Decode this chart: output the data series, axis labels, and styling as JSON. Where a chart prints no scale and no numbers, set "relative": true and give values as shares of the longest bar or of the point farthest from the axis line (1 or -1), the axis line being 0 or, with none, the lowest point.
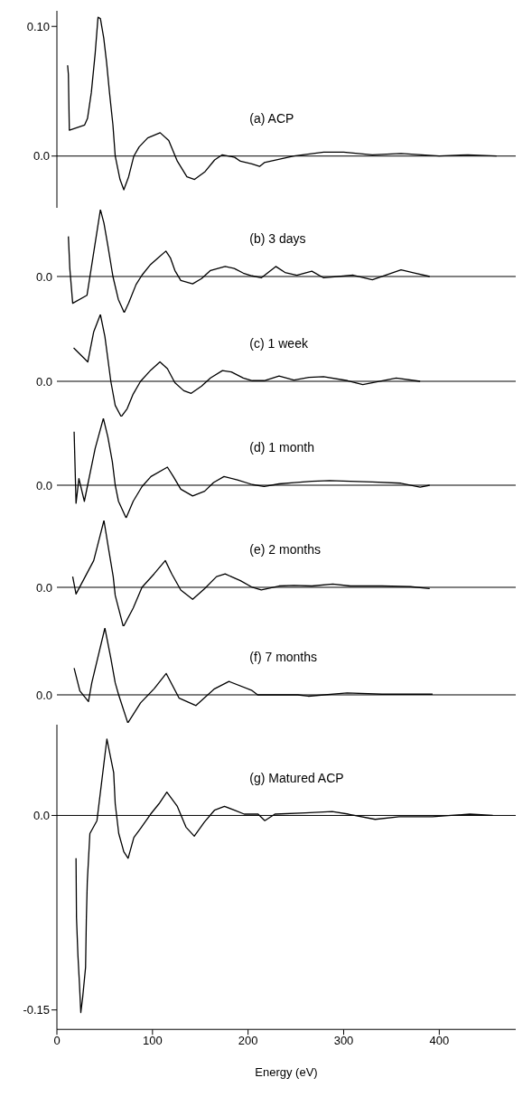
{
  "chart_data": [
    {
      "type": "line",
      "title": "(a) ACP",
      "color": "#000000",
      "xlim": [
        0,
        480
      ],
      "ylim": [
        -0.04,
        0.112
      ],
      "yticks": [
        {
          "value": 0,
          "label": "0.0"
        },
        {
          "value": 0.1,
          "label": "0.10"
        }
      ],
      "tick_labels": "y",
      "ref_lines": [
        {
          "axis": "y",
          "value": 0
        }
      ],
      "x": [
        11.2,
        12,
        13,
        29,
        32,
        36,
        40,
        43,
        45.5,
        49,
        52,
        55,
        58.6,
        61,
        66,
        70,
        75,
        80.5,
        86,
        95,
        108,
        117,
        126,
        136,
        144,
        155,
        165,
        173,
        186,
        192,
        204,
        212,
        217,
        248,
        279,
        300,
        330,
        360,
        400,
        430,
        460
      ],
      "values": [
        0.07,
        0.063,
        0.02,
        0.024,
        0.029,
        0.049,
        0.079,
        0.107,
        0.106,
        0.091,
        0.072,
        0.049,
        0.024,
        0,
        -0.018,
        -0.026,
        -0.016,
        0,
        0.007,
        0.014,
        0.018,
        0.012,
        -0.004,
        -0.016,
        -0.018,
        -0.012,
        -0.003,
        0.001,
        -0.001,
        -0.004,
        -0.006,
        -0.008,
        -0.005,
        0,
        0.003,
        0.003,
        0.001,
        0.002,
        0,
        0.001,
        0
      ]
    },
    {
      "type": "line",
      "title": "(b) 3 days",
      "color": "#000000",
      "xlim": [
        0,
        480
      ],
      "relative": true,
      "tick_labels": false,
      "ref_lines": [
        {
          "axis": "y",
          "value": 0,
          "label": "0.0"
        }
      ],
      "x": [
        12,
        13.5,
        16.5,
        31.5,
        45.5,
        49.2,
        53.3,
        58.6,
        64.2,
        70.4,
        75,
        82.8,
        89,
        98,
        106,
        114,
        118.7,
        123.4,
        129.6,
        142,
        151.4,
        160.7,
        176,
        185.6,
        195,
        204,
        213.8,
        229,
        238.6,
        251,
        266.7,
        279,
        310,
        330,
        360,
        375,
        390
      ],
      "values": [
        0.6,
        0.12,
        -0.4,
        -0.28,
        1,
        0.8,
        0.46,
        0,
        -0.34,
        -0.54,
        -0.4,
        -0.12,
        0.02,
        0.18,
        0.28,
        0.38,
        0.28,
        0.09,
        -0.06,
        -0.11,
        -0.03,
        0.09,
        0.15,
        0.12,
        0.05,
        0.01,
        -0.02,
        0.15,
        0.06,
        0.02,
        0.08,
        -0.02,
        0.02,
        -0.05,
        0.1,
        0.05,
        0
      ]
    },
    {
      "type": "line",
      "title": "(c) 1 week",
      "color": "#000000",
      "xlim": [
        0,
        480
      ],
      "relative": true,
      "tick_labels": false,
      "ref_lines": [
        {
          "axis": "y",
          "value": 0,
          "label": "0.0"
        }
      ],
      "x": [
        17.5,
        32.3,
        38.5,
        45.5,
        50.2,
        56.4,
        61,
        67.3,
        73.5,
        79.8,
        87.5,
        98.4,
        107.8,
        115.6,
        123.4,
        132.7,
        140.5,
        151.4,
        160.7,
        173.2,
        182.5,
        195,
        204.4,
        216.8,
        232.4,
        248,
        263.6,
        279,
        304,
        320,
        355,
        380
      ],
      "values": [
        0.5,
        0.29,
        0.74,
        1,
        0.67,
        0,
        -0.36,
        -0.53,
        -0.41,
        -0.19,
        0,
        0.17,
        0.29,
        0.19,
        -0.02,
        -0.14,
        -0.18,
        -0.07,
        0.05,
        0.16,
        0.14,
        0.05,
        0.01,
        0.01,
        0.08,
        0.02,
        0.06,
        0.07,
        0.01,
        -0.05,
        0.05,
        0
      ]
    },
    {
      "type": "line",
      "title": "(d) 1 month",
      "color": "#000000",
      "xlim": [
        0,
        480
      ],
      "relative": true,
      "tick_labels": false,
      "ref_lines": [
        {
          "axis": "y",
          "value": 0,
          "label": "0.0"
        }
      ],
      "x": [
        18,
        20,
        23,
        28.7,
        40,
        48.6,
        53.3,
        58,
        61,
        64.4,
        72.4,
        79.8,
        89,
        98.4,
        115.6,
        121.8,
        129.6,
        142,
        154.5,
        163.9,
        174.8,
        188.8,
        204.4,
        216.8,
        232.4,
        248,
        266.7,
        285.5,
        307,
        330,
        360,
        380,
        390
      ],
      "values": [
        0.8,
        -0.27,
        0.1,
        -0.24,
        0.55,
        1,
        0.72,
        0.35,
        0,
        -0.24,
        -0.49,
        -0.24,
        -0.02,
        0.13,
        0.27,
        0.13,
        -0.06,
        -0.16,
        -0.09,
        0.04,
        0.13,
        0.08,
        0.01,
        -0.02,
        0.02,
        0.04,
        0.06,
        0.07,
        0.06,
        0.05,
        0.03,
        -0.03,
        0
      ]
    },
    {
      "type": "line",
      "title": "(e) 2 months",
      "color": "#000000",
      "xlim": [
        0,
        480
      ],
      "relative": true,
      "tick_labels": false,
      "ref_lines": [
        {
          "axis": "y",
          "value": 0,
          "label": "0.0"
        }
      ],
      "x": [
        16.5,
        20,
        38.5,
        49.2,
        53.9,
        58.9,
        61,
        69.5,
        79.8,
        89,
        101.6,
        113.4,
        120.2,
        129.6,
        142,
        154.5,
        167,
        176,
        192,
        204.4,
        213.8,
        232.4,
        248,
        266.7,
        288.6,
        307,
        340,
        370,
        390
      ],
      "values": [
        0.16,
        -0.1,
        0.4,
        1,
        0.59,
        0.16,
        -0.12,
        -0.59,
        -0.31,
        0,
        0.2,
        0.4,
        0.2,
        -0.04,
        -0.18,
        -0.02,
        0.16,
        0.2,
        0.1,
        0,
        -0.04,
        0.02,
        0.03,
        0.02,
        0.05,
        0.02,
        0.02,
        0.01,
        -0.02
      ]
    },
    {
      "type": "line",
      "title": "(f) 7 months",
      "color": "#000000",
      "xlim": [
        0,
        480
      ],
      "relative": true,
      "tick_labels": false,
      "ref_lines": [
        {
          "axis": "y",
          "value": 0,
          "label": "0.0"
        }
      ],
      "x": [
        18,
        24,
        33,
        36.5,
        50.2,
        56.4,
        61,
        64.6,
        74.2,
        87.5,
        101.6,
        114.3,
        127.9,
        145.5,
        164.8,
        180,
        203.5,
        210,
        252,
        263,
        303.6,
        340,
        393
      ],
      "values": [
        0.4,
        0.06,
        -0.1,
        0.18,
        1,
        0.55,
        0.18,
        0,
        -0.42,
        -0.12,
        0.09,
        0.32,
        -0.05,
        -0.16,
        0.09,
        0.2,
        0.07,
        0,
        0,
        -0.02,
        0.03,
        0.01,
        0.01
      ]
    },
    {
      "type": "line",
      "title": "(g) Matured ACP",
      "xlabel": "Energy (eV)",
      "color": "#000000",
      "xlim": [
        0,
        480
      ],
      "xticks": [
        0,
        100,
        200,
        300,
        400
      ],
      "ylim": [
        -0.165,
        0.07
      ],
      "yticks": [
        {
          "value": 0,
          "label": "0.0"
        },
        {
          "value": -0.15,
          "label": "-0.15"
        }
      ],
      "ref_lines": [
        {
          "axis": "y",
          "value": 0
        }
      ],
      "x": [
        20,
        20.5,
        22,
        23.6,
        25,
        27,
        30,
        30.8,
        31.8,
        34.5,
        41.9,
        52.3,
        59.4,
        61,
        64.7,
        70,
        74.5,
        80.5,
        87.5,
        98,
        106.8,
        115,
        126,
        135,
        143.7,
        154.4,
        164.8,
        175.3,
        185.8,
        196,
        210.5,
        217.5,
        228,
        259.7,
        288,
        305,
        333,
        358,
        393,
        432,
        456
      ],
      "values": [
        -0.033,
        -0.079,
        -0.108,
        -0.13,
        -0.152,
        -0.14,
        -0.117,
        -0.08,
        -0.051,
        -0.014,
        -0.004,
        0.059,
        0.033,
        0.009,
        -0.014,
        -0.028,
        -0.033,
        -0.017,
        -0.01,
        0.001,
        0.009,
        0.018,
        0.007,
        -0.009,
        -0.016,
        -0.005,
        0.004,
        0.007,
        0.004,
        0.001,
        0.001,
        -0.004,
        0.001,
        0.002,
        0.003,
        0.001,
        -0.003,
        -0.001,
        -0.001,
        0.001,
        0
      ]
    }
  ]
}
